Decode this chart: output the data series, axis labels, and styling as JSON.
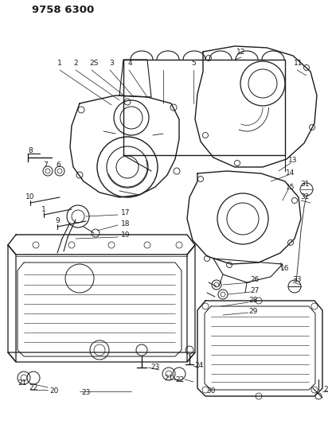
{
  "title": "9758 6300",
  "bg_color": "#ffffff",
  "line_color": "#1a1a1a",
  "title_fontsize": 9.5,
  "label_fontsize": 6.5,
  "fig_width": 4.12,
  "fig_height": 5.33,
  "dpi": 100
}
